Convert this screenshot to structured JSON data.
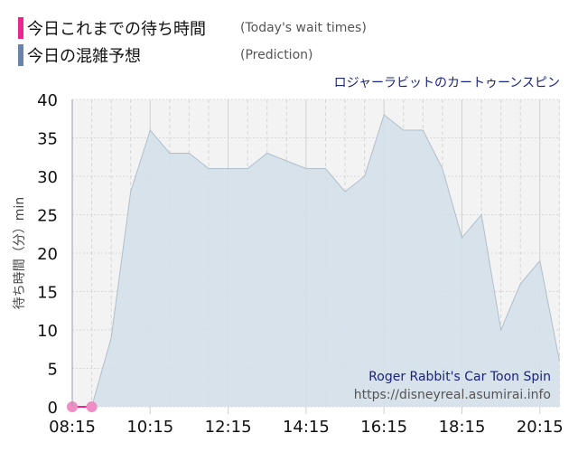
{
  "legend": [
    {
      "label_jp": "今日これまでの待ち時間",
      "label_en": "(Today's wait times)",
      "color": "#ec268f"
    },
    {
      "label_jp": "今日の混雑予想",
      "label_en": "(Prediction)",
      "color": "#6a83a8"
    }
  ],
  "ride_name_jp": "ロジャーラビットのカートゥーンスピン",
  "watermark": {
    "name": "Roger Rabbit's Car Toon Spin",
    "url": "https://disneyreal.asumirai.info"
  },
  "chart_data": {
    "type": "area",
    "title": "",
    "ylabel": "待ち時間（分）min",
    "xlabel": "",
    "ylim": [
      0,
      40
    ],
    "yticks": [
      0,
      5,
      10,
      15,
      20,
      25,
      30,
      35,
      40
    ],
    "xticks": [
      "08:15",
      "10:15",
      "12:15",
      "14:15",
      "16:15",
      "18:15",
      "20:15"
    ],
    "grid": true,
    "series": [
      {
        "name": "今日の混雑予想",
        "kind": "area",
        "color": "#6a83a8",
        "x": [
          "08:15",
          "08:45",
          "09:15",
          "09:45",
          "10:15",
          "10:45",
          "11:15",
          "11:45",
          "12:15",
          "12:45",
          "13:15",
          "13:45",
          "14:15",
          "14:45",
          "15:15",
          "15:45",
          "16:15",
          "16:45",
          "17:15",
          "17:45",
          "18:15",
          "18:45",
          "19:15",
          "19:45",
          "20:15",
          "20:45"
        ],
        "values": [
          0,
          0,
          9,
          28,
          36,
          33,
          33,
          31,
          31,
          31,
          33,
          32,
          31,
          31,
          28,
          30,
          38,
          36,
          36,
          31,
          22,
          25,
          10,
          16,
          19,
          6
        ]
      },
      {
        "name": "今日これまでの待ち時間",
        "kind": "line",
        "color": "#ec268f",
        "x": [
          "08:15",
          "08:45"
        ],
        "values": [
          0,
          0
        ]
      }
    ]
  }
}
